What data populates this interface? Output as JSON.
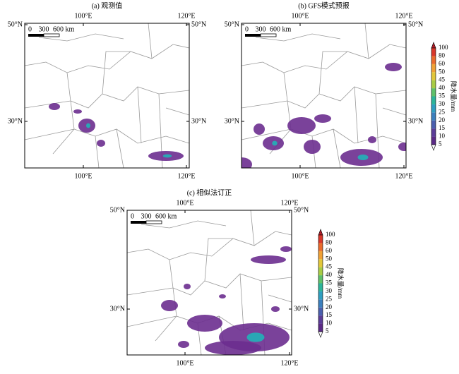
{
  "panels": [
    {
      "title": "(a) 观测值",
      "x_ticks": [
        "100°E",
        "120°E"
      ],
      "y_ticks": [
        "50°N",
        "30°N"
      ],
      "scale": [
        "0",
        "300",
        "600 km"
      ]
    },
    {
      "title": "(b) GFS模式预报",
      "x_ticks": [
        "100°E",
        "120°E"
      ],
      "y_ticks": [
        "50°N",
        "30°N"
      ],
      "scale": [
        "0",
        "300",
        "600 km"
      ]
    },
    {
      "title": "(c) 相似法订正",
      "x_ticks": [
        "100°E",
        "120°E"
      ],
      "y_ticks": [
        "50°N",
        "30°N"
      ],
      "scale": [
        "0",
        "300",
        "600 km"
      ]
    }
  ],
  "colorbar": {
    "title": "降水量/mm",
    "labels": [
      5,
      10,
      15,
      20,
      25,
      30,
      35,
      40,
      45,
      50,
      60,
      80,
      100
    ]
  }
}
